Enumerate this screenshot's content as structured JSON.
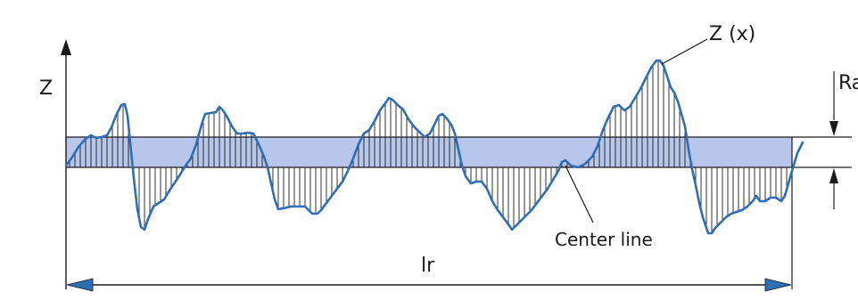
{
  "labels": {
    "z_axis": "Z",
    "profile": "Z (x)",
    "ra": "Ra",
    "center_line": "Center line",
    "length": "lr"
  },
  "colors": {
    "profile": "#2f6db5",
    "band": "#b7c6ea",
    "line": "#1a1a1a",
    "arrow": "#2f6db5"
  }
}
